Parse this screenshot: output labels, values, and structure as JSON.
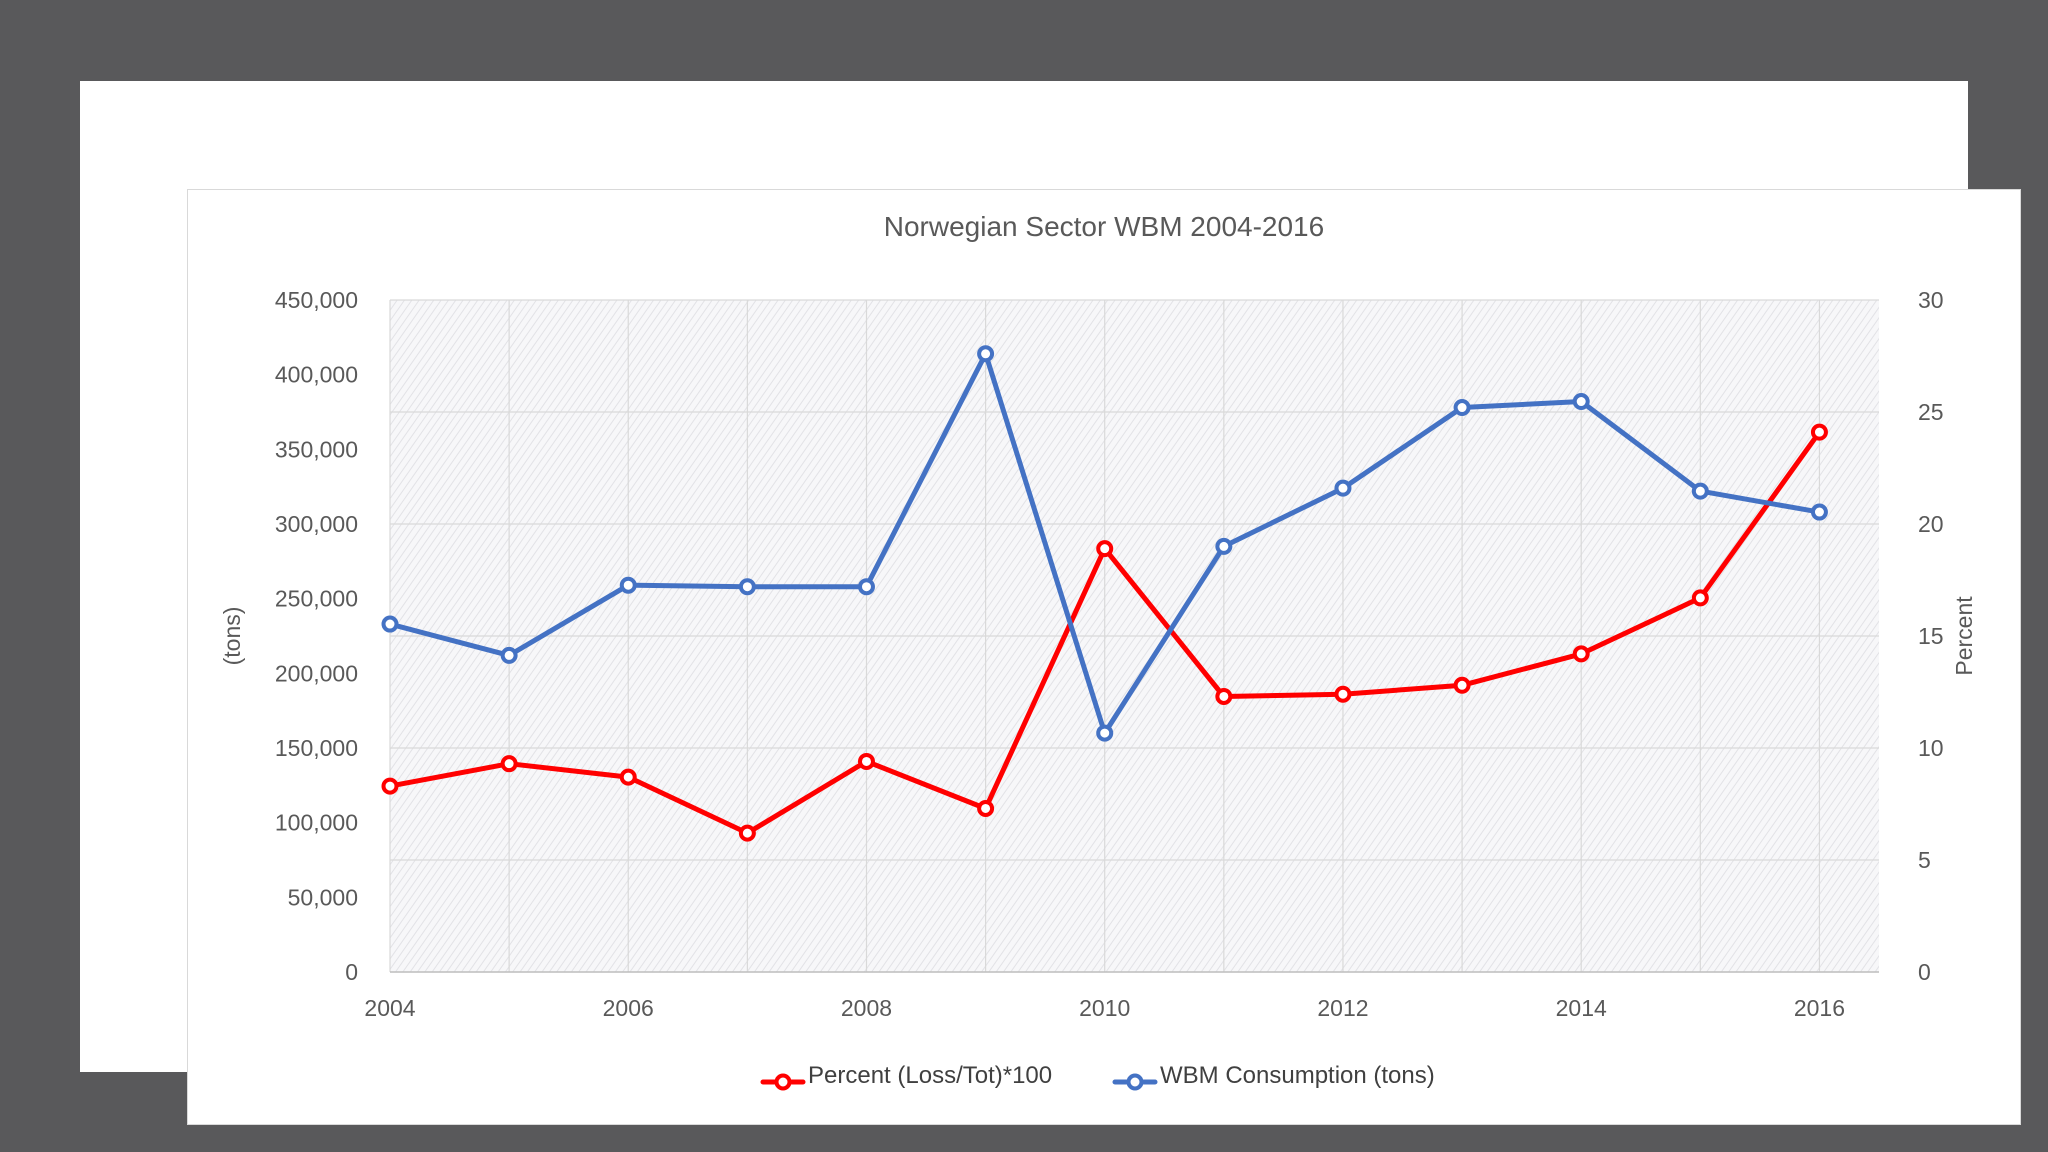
{
  "chart_data": {
    "type": "line",
    "title": "Norwegian Sector WBM 2004-2016",
    "x": [
      2004,
      2005,
      2006,
      2007,
      2008,
      2009,
      2010,
      2011,
      2012,
      2013,
      2014,
      2015,
      2016
    ],
    "xticks": [
      2004,
      2006,
      2008,
      2010,
      2012,
      2014,
      2016
    ],
    "xtick_labels": [
      "2004",
      "2006",
      "2008",
      "2010",
      "2012",
      "2014",
      "2016"
    ],
    "xlim": [
      2004,
      2016.5
    ],
    "ylabel": "(tons)",
    "ylim": [
      0,
      450000
    ],
    "yticks": [
      0,
      50000,
      100000,
      150000,
      200000,
      250000,
      300000,
      350000,
      400000,
      450000
    ],
    "ytick_labels": [
      "0",
      "50,000",
      "100,000",
      "150,000",
      "200,000",
      "250,000",
      "300,000",
      "350,000",
      "400,000",
      "450,000"
    ],
    "y2label": "Percent",
    "y2lim": [
      0,
      30
    ],
    "y2ticks": [
      0,
      5,
      10,
      15,
      20,
      25,
      30
    ],
    "y2tick_labels": [
      "0",
      "5",
      "10",
      "15",
      "20",
      "25",
      "30"
    ],
    "grid": true,
    "legend_position": "bottom",
    "series": [
      {
        "name": "Percent (Loss/Tot)*100",
        "axis": "right",
        "color": "#ff0000",
        "values": [
          8.3,
          9.3,
          8.7,
          6.2,
          9.4,
          7.3,
          18.9,
          12.3,
          12.4,
          12.8,
          14.2,
          16.7,
          24.1
        ]
      },
      {
        "name": "WBM Consumption (tons)",
        "axis": "left",
        "color": "#4472c4",
        "values": [
          233000,
          212000,
          259000,
          258000,
          258000,
          414000,
          160000,
          285000,
          324000,
          378000,
          382000,
          322000,
          308000
        ]
      }
    ]
  }
}
